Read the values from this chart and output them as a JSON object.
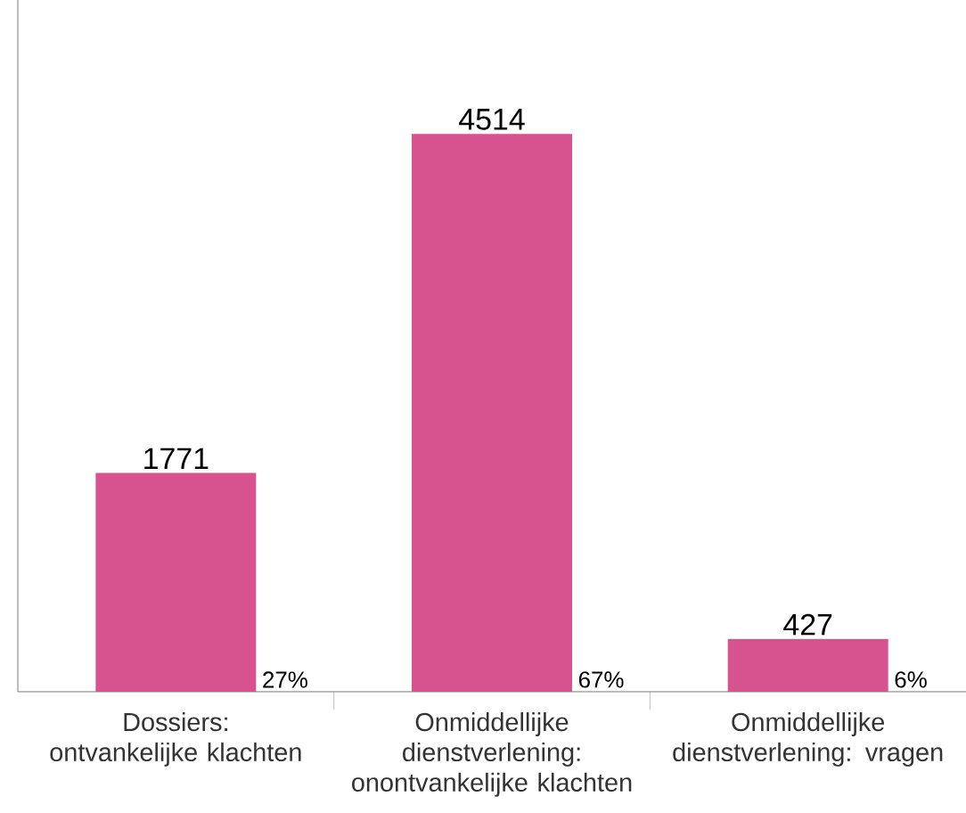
{
  "chart_data": {
    "type": "bar",
    "categories": [
      "Dossiers: ontvankelijke klachten",
      "Onmiddellijke dienstverlening: onontvankelijke klachten",
      "Onmiddellijke dienstverlening: vragen"
    ],
    "values": [
      1771,
      4514,
      427
    ],
    "color": "#d6538f",
    "data_labels": true,
    "annotations": [
      "27%",
      "67%",
      "6%"
    ]
  }
}
